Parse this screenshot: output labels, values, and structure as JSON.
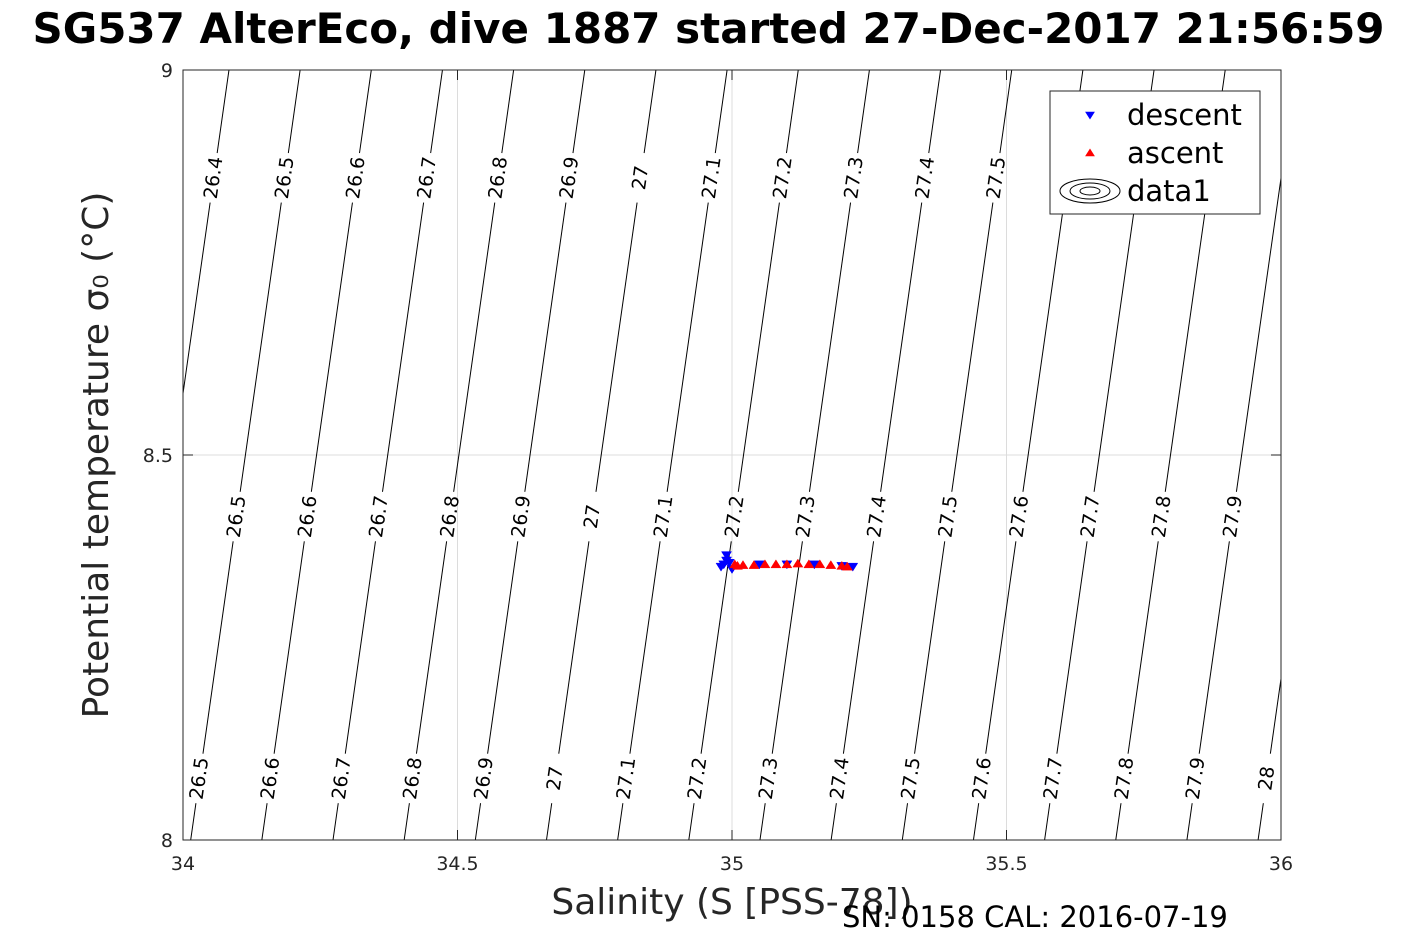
{
  "chart_data": {
    "type": "scatter",
    "title": "SG537 AlterEco, dive 1887 started 27-Dec-2017 21:56:59",
    "xlabel": "Salinity (S [PSS-78])",
    "ylabel": "Potential temperature σ₀ (°C)",
    "xlim": [
      34,
      36
    ],
    "ylim": [
      8,
      9
    ],
    "x_ticks": [
      "34",
      "34.5",
      "35",
      "35.5",
      "36"
    ],
    "y_ticks": [
      "8",
      "8.5",
      "9"
    ],
    "grid": true,
    "legend_position": "top-right",
    "footer": "SN: 0158  CAL: 2016-07-19",
    "series": [
      {
        "name": "descent",
        "marker": "triangle-down",
        "color": "#0000ff",
        "points": [
          [
            34.99,
            8.363
          ],
          [
            34.985,
            8.358
          ],
          [
            34.98,
            8.355
          ],
          [
            34.99,
            8.37
          ],
          [
            34.995,
            8.36
          ],
          [
            35.0,
            8.352
          ],
          [
            35.05,
            8.358
          ],
          [
            35.1,
            8.358
          ],
          [
            35.15,
            8.358
          ],
          [
            35.2,
            8.356
          ],
          [
            35.22,
            8.355
          ]
        ]
      },
      {
        "name": "ascent",
        "marker": "triangle-up",
        "color": "#ff0000",
        "points": [
          [
            35.005,
            8.358
          ],
          [
            35.01,
            8.356
          ],
          [
            35.02,
            8.357
          ],
          [
            35.04,
            8.357
          ],
          [
            35.06,
            8.358
          ],
          [
            35.08,
            8.358
          ],
          [
            35.1,
            8.358
          ],
          [
            35.12,
            8.359
          ],
          [
            35.14,
            8.358
          ],
          [
            35.16,
            8.358
          ],
          [
            35.18,
            8.357
          ],
          [
            35.2,
            8.356
          ],
          [
            35.21,
            8.355
          ]
        ]
      },
      {
        "name": "data1",
        "type": "contour",
        "color": "#000000",
        "levels": [
          26.4,
          26.5,
          26.6,
          26.7,
          26.8,
          26.9,
          27.0,
          27.1,
          27.2,
          27.3,
          27.4,
          27.5,
          27.6,
          27.7,
          27.8,
          27.9,
          28.0
        ],
        "level_labels": [
          "26.4",
          "26.5",
          "26.6",
          "26.7",
          "26.8",
          "26.9",
          "27",
          "27.1",
          "27.2",
          "27.3",
          "27.4",
          "27.5",
          "27.6",
          "27.7",
          "27.8",
          "27.9",
          "28"
        ]
      }
    ]
  }
}
